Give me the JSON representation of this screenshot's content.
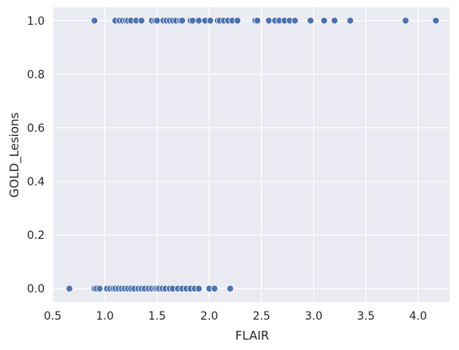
{
  "chart_data": {
    "type": "scatter",
    "title": "",
    "xlabel": "FLAIR",
    "ylabel": "GOLD_Lesions",
    "xlim": [
      0.5,
      4.3
    ],
    "ylim": [
      -0.05,
      1.05
    ],
    "xticks": [
      0.5,
      1.0,
      1.5,
      2.0,
      2.5,
      3.0,
      3.5,
      4.0
    ],
    "xtick_labels": [
      "0.5",
      "1.0",
      "1.5",
      "2.0",
      "2.5",
      "3.0",
      "3.5",
      "4.0"
    ],
    "yticks": [
      0.0,
      0.2,
      0.4,
      0.6,
      0.8,
      1.0
    ],
    "ytick_labels": [
      "0.0",
      "0.2",
      "0.4",
      "0.6",
      "0.8",
      "1.0"
    ],
    "grid": true,
    "colors": {
      "background": "#eaeaf2",
      "grid": "#ffffff",
      "marker": "#4c72b0"
    },
    "series": [
      {
        "x": [
          0.66,
          0.9,
          0.92,
          0.95,
          1.02,
          1.05,
          1.08,
          1.1,
          1.13,
          1.16,
          1.19,
          1.22,
          1.25,
          1.28,
          1.32,
          1.35,
          1.38,
          1.42,
          1.45,
          1.48,
          1.5,
          1.52,
          1.55,
          1.58,
          1.62,
          1.65,
          1.7,
          1.74,
          1.78,
          1.82,
          1.86,
          1.9,
          2.0,
          2.05,
          2.2
        ],
        "y": [
          0,
          0,
          0,
          0,
          0,
          0,
          0,
          0,
          0,
          0,
          0,
          0,
          0,
          0,
          0,
          0,
          0,
          0,
          0,
          0,
          0,
          0,
          0,
          0,
          0,
          0,
          0,
          0,
          0,
          0,
          0,
          0,
          0,
          0,
          0
        ]
      },
      {
        "x": [
          0.9,
          1.1,
          1.14,
          1.17,
          1.2,
          1.22,
          1.25,
          1.3,
          1.35,
          1.45,
          1.48,
          1.5,
          1.56,
          1.59,
          1.62,
          1.65,
          1.68,
          1.72,
          1.74,
          1.82,
          1.84,
          1.9,
          1.96,
          2.01,
          2.08,
          2.1,
          2.14,
          2.18,
          2.22,
          2.27,
          2.44,
          2.46,
          2.57,
          2.63,
          2.67,
          2.72,
          2.77,
          2.82,
          2.97,
          3.1,
          3.2,
          3.35,
          3.88,
          4.17
        ],
        "y": [
          1,
          1,
          1,
          1,
          1,
          1,
          1,
          1,
          1,
          1,
          1,
          1,
          1,
          1,
          1,
          1,
          1,
          1,
          1,
          1,
          1,
          1,
          1,
          1,
          1,
          1,
          1,
          1,
          1,
          1,
          1,
          1,
          1,
          1,
          1,
          1,
          1,
          1,
          1,
          1,
          1,
          1,
          1,
          1
        ]
      }
    ]
  }
}
